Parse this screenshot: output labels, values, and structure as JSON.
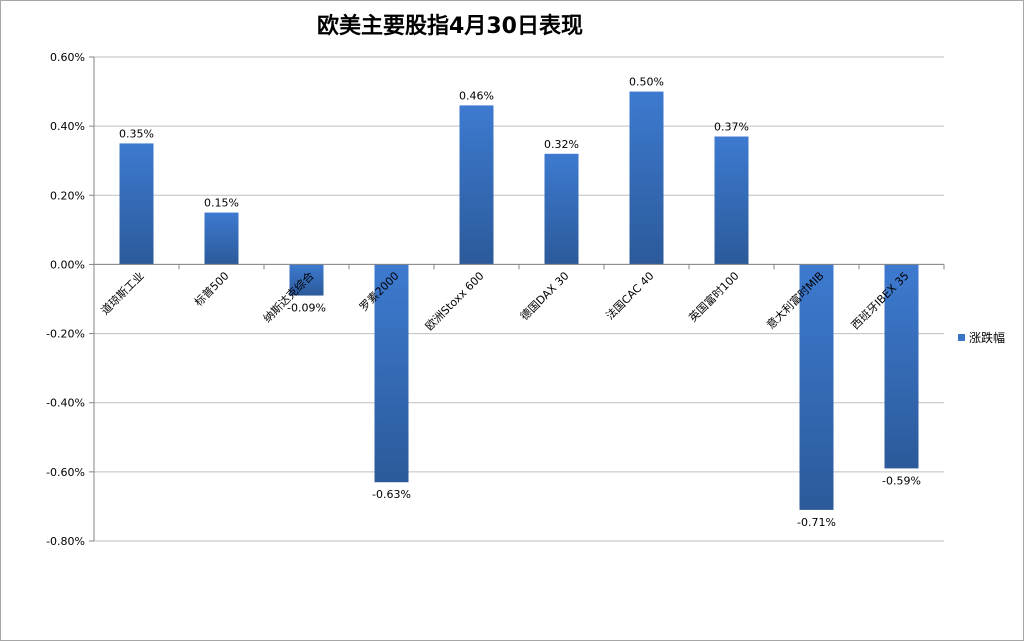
{
  "chart_data": {
    "type": "bar",
    "title": "欧美主要股指4月30日表现",
    "categories": [
      "道琼斯工业",
      "标普500",
      "纳斯达克综合",
      "罗素2000",
      "欧洲Stoxx 600",
      "德国DAX 30",
      "法国CAC 40",
      "英国富时100",
      "意大利富时MIB",
      "西班牙IBEX 35"
    ],
    "series": [
      {
        "name": "涨跌幅",
        "values": [
          0.35,
          0.15,
          -0.09,
          -0.63,
          0.46,
          0.32,
          0.5,
          0.37,
          -0.71,
          -0.59
        ],
        "data_labels": [
          "0.35%",
          "0.15%",
          "-0.09%",
          "-0.63%",
          "0.46%",
          "0.32%",
          "0.50%",
          "0.37%",
          "-0.71%",
          "-0.59%"
        ],
        "color": "#3b74c4"
      }
    ],
    "y_ticks": [
      "0.60%",
      "0.40%",
      "0.20%",
      "0.00%",
      "-0.20%",
      "-0.40%",
      "-0.60%",
      "-0.80%"
    ],
    "ylim": [
      -0.8,
      0.6
    ],
    "grid": true,
    "legend": "right",
    "xlabel": "",
    "ylabel": ""
  }
}
